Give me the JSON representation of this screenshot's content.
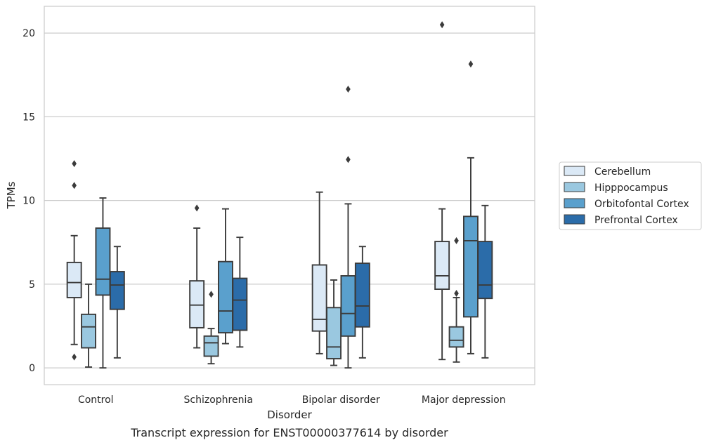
{
  "chart_data": {
    "type": "box",
    "title": "",
    "caption": "Transcript expression for ENST00000377614 by disorder",
    "xlabel": "Disorder",
    "ylabel": "TPMs",
    "ylim": [
      -1,
      21.6
    ],
    "yticks": [
      0,
      5,
      10,
      15,
      20
    ],
    "grid": "horizontal",
    "legend_placement": "right",
    "categories": [
      "Control",
      "Schizophrenia",
      "Bipolar disorder",
      "Major depression"
    ],
    "series": [
      {
        "name": "Cerebellum",
        "color": "#dbe9f6",
        "boxes": [
          {
            "whisker_low": 1.4,
            "q1": 4.2,
            "median": 5.1,
            "q3": 6.3,
            "whisker_high": 7.9,
            "outliers": [
              12.2,
              10.9,
              0.65
            ]
          },
          {
            "whisker_low": 1.2,
            "q1": 2.4,
            "median": 3.75,
            "q3": 5.2,
            "whisker_high": 8.35,
            "outliers": [
              9.55
            ]
          },
          {
            "whisker_low": 0.85,
            "q1": 2.2,
            "median": 2.9,
            "q3": 6.15,
            "whisker_high": 10.5,
            "outliers": []
          },
          {
            "whisker_low": 0.5,
            "q1": 4.7,
            "median": 5.5,
            "q3": 7.55,
            "whisker_high": 9.5,
            "outliers": [
              20.5
            ]
          }
        ]
      },
      {
        "name": "Hipppocampus",
        "color": "#9ac8e0",
        "boxes": [
          {
            "whisker_low": 0.05,
            "q1": 1.2,
            "median": 2.45,
            "q3": 3.2,
            "whisker_high": 5.0,
            "outliers": []
          },
          {
            "whisker_low": 0.25,
            "q1": 0.7,
            "median": 1.5,
            "q3": 1.9,
            "whisker_high": 2.35,
            "outliers": [
              4.4
            ]
          },
          {
            "whisker_low": 0.15,
            "q1": 0.55,
            "median": 1.25,
            "q3": 3.6,
            "whisker_high": 5.25,
            "outliers": []
          },
          {
            "whisker_low": 0.35,
            "q1": 1.25,
            "median": 1.65,
            "q3": 2.45,
            "whisker_high": 4.2,
            "outliers": [
              7.6,
              4.45
            ]
          }
        ]
      },
      {
        "name": "Orbitofontal Cortex",
        "color": "#5aa0cd",
        "boxes": [
          {
            "whisker_low": 0.0,
            "q1": 4.35,
            "median": 5.3,
            "q3": 8.35,
            "whisker_high": 10.15,
            "outliers": []
          },
          {
            "whisker_low": 1.45,
            "q1": 2.1,
            "median": 3.4,
            "q3": 6.35,
            "whisker_high": 9.5,
            "outliers": []
          },
          {
            "whisker_low": 0.0,
            "q1": 1.9,
            "median": 3.25,
            "q3": 5.5,
            "whisker_high": 9.8,
            "outliers": [
              16.65,
              12.45
            ]
          },
          {
            "whisker_low": 0.85,
            "q1": 3.05,
            "median": 7.6,
            "q3": 9.05,
            "whisker_high": 12.55,
            "outliers": [
              18.15
            ]
          }
        ]
      },
      {
        "name": "Prefrontal Cortex",
        "color": "#2b6ca9",
        "boxes": [
          {
            "whisker_low": 0.6,
            "q1": 3.5,
            "median": 4.95,
            "q3": 5.75,
            "whisker_high": 7.25,
            "outliers": []
          },
          {
            "whisker_low": 1.25,
            "q1": 2.25,
            "median": 4.05,
            "q3": 5.35,
            "whisker_high": 7.8,
            "outliers": []
          },
          {
            "whisker_low": 0.6,
            "q1": 2.45,
            "median": 3.7,
            "q3": 6.25,
            "whisker_high": 7.25,
            "outliers": []
          },
          {
            "whisker_low": 0.6,
            "q1": 4.15,
            "median": 4.95,
            "q3": 7.55,
            "whisker_high": 9.7,
            "outliers": []
          }
        ]
      }
    ]
  }
}
